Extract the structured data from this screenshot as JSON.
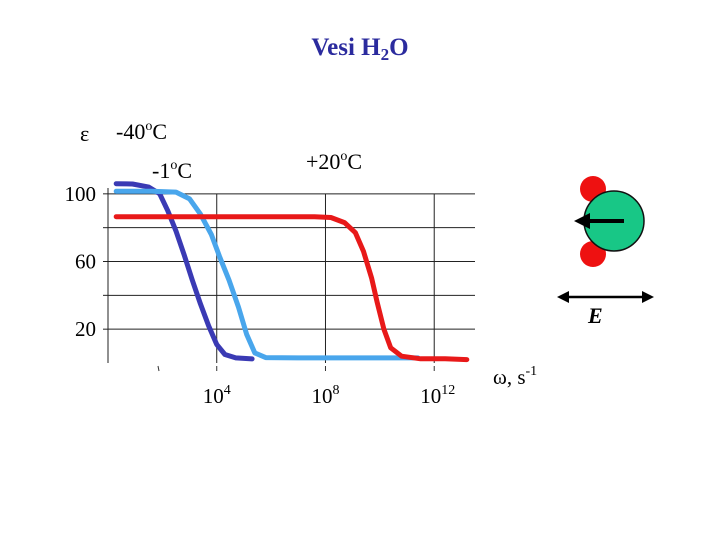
{
  "title": {
    "main": "Vesi H",
    "subscript": "2",
    "tail": "O"
  },
  "colors": {
    "series_minus40": "#3a3ab4",
    "series_minus1": "#49a6ec",
    "series_plus20": "#e81919",
    "atom_h": "#ee1111",
    "atom_o": "#18c786",
    "arrow": "#000000"
  },
  "chart_data": {
    "type": "line",
    "title": "Vesi H2O",
    "ylabel": "ε",
    "xlabel": "ω, s-1",
    "xlabel_base": "ω, s",
    "xlabel_exp": "-1",
    "x_scale": "log10",
    "xlim_log10": [
      0,
      13.5
    ],
    "ylim": [
      0,
      107
    ],
    "y_ticks": [
      {
        "value": 100,
        "label": "100"
      },
      {
        "value": 60,
        "label": "60"
      },
      {
        "value": 20,
        "label": "20"
      }
    ],
    "x_ticks": [
      {
        "exp": 4,
        "base": "10",
        "sup": "4"
      },
      {
        "exp": 8,
        "base": "10",
        "sup": "8"
      },
      {
        "exp": 12,
        "base": "10",
        "sup": "12"
      }
    ],
    "series": [
      {
        "name": "-40°C",
        "label_base": "-40",
        "label_sup": "o",
        "label_unit": "C",
        "color_key": "series_minus40",
        "points": [
          [
            0.3,
            106
          ],
          [
            0.9,
            105.8
          ],
          [
            1.5,
            104
          ],
          [
            1.9,
            100
          ],
          [
            2.2,
            90
          ],
          [
            2.5,
            78
          ],
          [
            2.8,
            64
          ],
          [
            3.1,
            49
          ],
          [
            3.4,
            35
          ],
          [
            3.7,
            22
          ],
          [
            4.0,
            11
          ],
          [
            4.3,
            5
          ],
          [
            4.7,
            3
          ],
          [
            5.3,
            2.4
          ]
        ]
      },
      {
        "name": "-1°C",
        "label_base": "-1",
        "label_sup": "o",
        "label_unit": "C",
        "color_key": "series_minus1",
        "points": [
          [
            0.3,
            101.5
          ],
          [
            1.6,
            101.5
          ],
          [
            2.5,
            101
          ],
          [
            3.0,
            97
          ],
          [
            3.4,
            88
          ],
          [
            3.8,
            76
          ],
          [
            4.1,
            63
          ],
          [
            4.45,
            49
          ],
          [
            4.8,
            33
          ],
          [
            5.1,
            17
          ],
          [
            5.4,
            6
          ],
          [
            5.8,
            3.2
          ],
          [
            7.0,
            3
          ],
          [
            10.8,
            3
          ],
          [
            11.4,
            3
          ]
        ]
      },
      {
        "name": "+20°C",
        "label_base": "+20",
        "label_sup": "o",
        "label_unit": "C",
        "color_key": "series_plus20",
        "points": [
          [
            0.3,
            86.5
          ],
          [
            7.6,
            86.5
          ],
          [
            8.2,
            86
          ],
          [
            8.7,
            83
          ],
          [
            9.1,
            77
          ],
          [
            9.4,
            66
          ],
          [
            9.7,
            50
          ],
          [
            9.9,
            36
          ],
          [
            10.15,
            20
          ],
          [
            10.4,
            9
          ],
          [
            10.8,
            4
          ],
          [
            11.5,
            2.5
          ],
          [
            12.4,
            2.5
          ],
          [
            13.2,
            2
          ]
        ]
      }
    ]
  },
  "diagram": {
    "field_label": "E",
    "molecule": [
      "hydrogen-atom-top",
      "oxygen-atom",
      "hydrogen-atom-bottom"
    ]
  }
}
